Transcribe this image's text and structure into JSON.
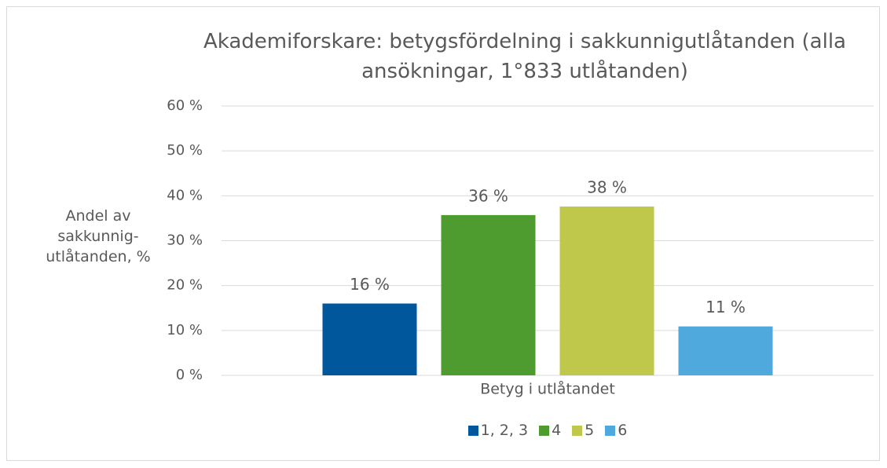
{
  "chart_data": {
    "type": "bar",
    "title": "Akademiforskare: betygsfördelning i sakkunnigutlåtanden (alla ansökningar, 1°833 utlåtanden)",
    "y_label": "Andel av sakkunnig-utlåtanden, %",
    "x_label": "Betyg i utlåtandet",
    "series": [
      {
        "name": "1, 2, 3",
        "color": "#00579c",
        "values": [
          16
        ],
        "value_labels": [
          "16 %"
        ]
      },
      {
        "name": "4",
        "color": "#4e9c2f",
        "values": [
          35.7
        ],
        "value_labels": [
          "36 %"
        ]
      },
      {
        "name": "5",
        "color": "#bfc84a",
        "values": [
          37.6
        ],
        "value_labels": [
          "38 %"
        ]
      },
      {
        "name": "6",
        "color": "#4fa9dc",
        "values": [
          10.9
        ],
        "value_labels": [
          "11 %"
        ]
      }
    ],
    "ylim": [
      0,
      60
    ],
    "yticks": [
      {
        "value": 0,
        "label": "0 %"
      },
      {
        "value": 10,
        "label": "10 %"
      },
      {
        "value": 20,
        "label": "20 %"
      },
      {
        "value": 30,
        "label": "30 %"
      },
      {
        "value": 40,
        "label": "40 %"
      },
      {
        "value": 50,
        "label": "50 %"
      },
      {
        "value": 60,
        "label": "60 %"
      }
    ],
    "grid": true,
    "legend": "bottom"
  }
}
